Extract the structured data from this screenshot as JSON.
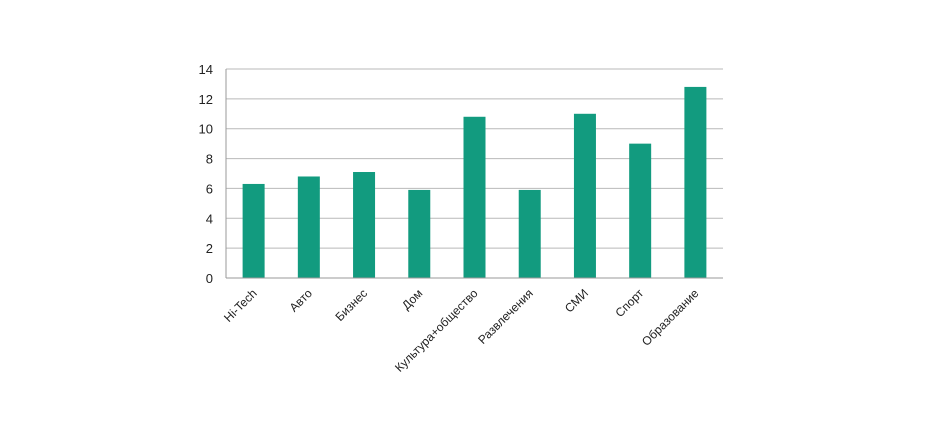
{
  "chart_data": {
    "type": "bar",
    "categories": [
      "Hi-Tech",
      "Авто",
      "Бизнес",
      "Дом",
      "Культура+общество",
      "Развлечения",
      "СМИ",
      "Спорт",
      "Образование"
    ],
    "values": [
      6.3,
      6.8,
      7.1,
      5.9,
      10.8,
      5.9,
      11.0,
      9.0,
      12.8
    ],
    "ylim": [
      0,
      14
    ],
    "yticks": [
      "0",
      "2",
      "4",
      "6",
      "8",
      "10",
      "12",
      "14"
    ],
    "grid": true,
    "colors": {
      "bar": "#129b7f",
      "grid": "#b9b9b9",
      "axis": "#9a9a9a"
    }
  }
}
